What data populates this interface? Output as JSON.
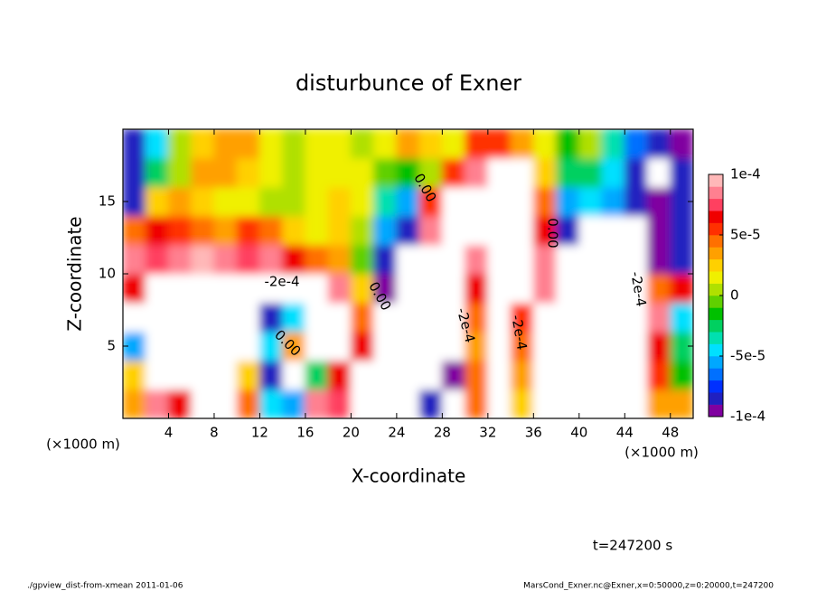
{
  "chart_data": {
    "type": "contour",
    "title": "disturbunce of Exner",
    "x_label": "X-coordinate",
    "y_label": "Z-coordinate",
    "x_unit": "(×1000 m)",
    "xlim": [
      0,
      50
    ],
    "ylim": [
      0,
      20
    ],
    "xticks": [
      4,
      8,
      12,
      16,
      20,
      24,
      28,
      32,
      36,
      40,
      44,
      48
    ],
    "yticks": [
      5,
      10,
      15
    ],
    "x": [
      1,
      3,
      5,
      7,
      9,
      11,
      13,
      15,
      17,
      19,
      21,
      23,
      25,
      27,
      29,
      31,
      33,
      35,
      37,
      39,
      41,
      43,
      45,
      47,
      49
    ],
    "z": [
      1,
      3,
      5,
      7,
      9,
      11,
      13,
      15,
      17,
      19
    ],
    "values": [
      [
        3e-05,
        8e-05,
        6e-05,
        -0.00015,
        -0.00015,
        4e-05,
        -5e-05,
        -6e-05,
        8e-05,
        7e-05,
        -0.00015,
        -0.00015,
        -0.00015,
        -8e-05,
        -0.00015,
        4e-05,
        -0.00015,
        2e-05,
        -0.00015,
        -0.00015,
        -0.00015,
        -0.00015,
        -0.00015,
        3e-05,
        3e-05
      ],
      [
        2e-05,
        -0.00015,
        -0.00015,
        -0.00015,
        -0.00015,
        2e-05,
        -8e-05,
        -0.00015,
        -3e-05,
        6e-05,
        -0.00015,
        -0.00015,
        -0.00015,
        -0.00015,
        -9e-05,
        4e-05,
        -0.00015,
        3e-05,
        -0.00015,
        -0.00015,
        -0.00015,
        -0.00015,
        -0.00015,
        5e-05,
        -2e-05
      ],
      [
        -6e-05,
        -0.00015,
        -0.00015,
        -0.00015,
        -0.00015,
        -0.00015,
        -5e-05,
        3e-05,
        -0.00015,
        -0.00015,
        6e-05,
        -0.00015,
        -0.00015,
        -0.00015,
        -0.00015,
        3e-05,
        -0.00015,
        4e-05,
        -0.00015,
        -0.00015,
        -0.00015,
        -0.00015,
        -0.00015,
        6e-05,
        -3e-05
      ],
      [
        -0.00015,
        -0.00015,
        -0.00015,
        -0.00015,
        -0.00015,
        -0.00015,
        -8e-05,
        -5e-05,
        -0.00015,
        -0.00015,
        4e-05,
        -0.00015,
        -0.00015,
        -0.00015,
        -0.00015,
        4e-05,
        -0.00015,
        5e-05,
        -0.00015,
        -0.00015,
        -0.00015,
        -0.00015,
        -0.00015,
        8e-05,
        -5e-05
      ],
      [
        6e-05,
        -0.00015,
        -0.00015,
        -0.00015,
        -0.00015,
        -0.00015,
        -0.00015,
        -0.00015,
        -0.00015,
        8e-05,
        2e-05,
        -9e-05,
        -0.00015,
        -0.00015,
        -0.00015,
        6e-05,
        -0.00015,
        -0.00015,
        8e-05,
        -0.00015,
        -0.00015,
        -0.00015,
        -0.00015,
        4e-05,
        6e-05
      ],
      [
        8e-05,
        7e-05,
        8e-05,
        9e-05,
        8e-05,
        7e-05,
        8e-05,
        6e-05,
        4e-05,
        3e-05,
        -1e-05,
        -8e-05,
        -0.00015,
        -0.00015,
        -0.00015,
        8e-05,
        -0.00015,
        -0.00015,
        8e-05,
        -0.00015,
        -0.00015,
        -0.00015,
        -0.00015,
        -0.0001,
        -8e-05
      ],
      [
        4e-05,
        6e-05,
        5e-05,
        4e-05,
        3e-05,
        5e-05,
        4e-05,
        2e-05,
        1e-05,
        2e-05,
        0,
        -6e-05,
        -8e-05,
        8e-05,
        -0.00015,
        -0.00015,
        -0.00015,
        -0.00015,
        6e-05,
        -8e-05,
        -0.00015,
        -0.00015,
        -0.00015,
        -9e-05,
        -8e-05
      ],
      [
        -8e-05,
        2e-05,
        3e-05,
        2e-05,
        1e-05,
        1e-05,
        0,
        0,
        1e-05,
        2e-05,
        1e-05,
        -4e-05,
        -6e-05,
        5e-05,
        -0.00015,
        -0.00015,
        -0.00015,
        -0.00015,
        4e-05,
        -6e-05,
        -5e-05,
        -6e-05,
        -8e-05,
        -9e-05,
        -8e-05
      ],
      [
        -8e-05,
        -3e-05,
        0,
        3e-05,
        3e-05,
        2e-05,
        1e-05,
        0,
        1e-05,
        1e-05,
        1e-05,
        -1e-05,
        -2e-05,
        0,
        5e-05,
        8e-05,
        -0.00015,
        -0.00015,
        2e-05,
        -3e-05,
        -3e-05,
        -5e-05,
        -8e-05,
        -0.00015,
        -8e-05
      ],
      [
        -8e-05,
        -5e-05,
        0,
        2e-05,
        3e-05,
        3e-05,
        1e-05,
        0,
        1e-05,
        1e-05,
        0,
        1e-05,
        3e-05,
        2e-05,
        1e-05,
        5e-05,
        5e-05,
        3e-05,
        1e-05,
        -2e-05,
        0,
        -4e-05,
        -7e-05,
        -8e-05,
        -0.0001
      ]
    ],
    "colorbar": {
      "clim": [
        -0.0001,
        0.0001
      ],
      "ticks": [
        {
          "value": 0.0001,
          "label": "1e-4"
        },
        {
          "value": 5e-05,
          "label": "5e-5"
        },
        0,
        {
          "value": -5e-05,
          "label": "-5e-5"
        },
        {
          "value": -0.0001,
          "label": "-1e-4"
        }
      ],
      "colors": [
        "#8000a0",
        "#2020c0",
        "#0030ff",
        "#0070ff",
        "#00a8ff",
        "#00e0ff",
        "#00e0b0",
        "#00d060",
        "#00c000",
        "#60d000",
        "#b0e000",
        "#f0f000",
        "#ffd000",
        "#ffa000",
        "#ff7000",
        "#ff3000",
        "#f00000",
        "#ff4060",
        "#ff8090",
        "#ffb8b8"
      ],
      "under_color": "#ffffff"
    },
    "contour_labels": [
      "-2e-4",
      "0.00",
      "0.00",
      "0.00",
      "-2e-4",
      "-2e-4",
      "-2e-4",
      "0.00"
    ],
    "time_label": "t=247200 s",
    "footer_left": "./gpview_dist-from-xmean  2011-01-06",
    "footer_right": "MarsCond_Exner.nc@Exner,x=0:50000,z=0:20000,t=247200"
  }
}
